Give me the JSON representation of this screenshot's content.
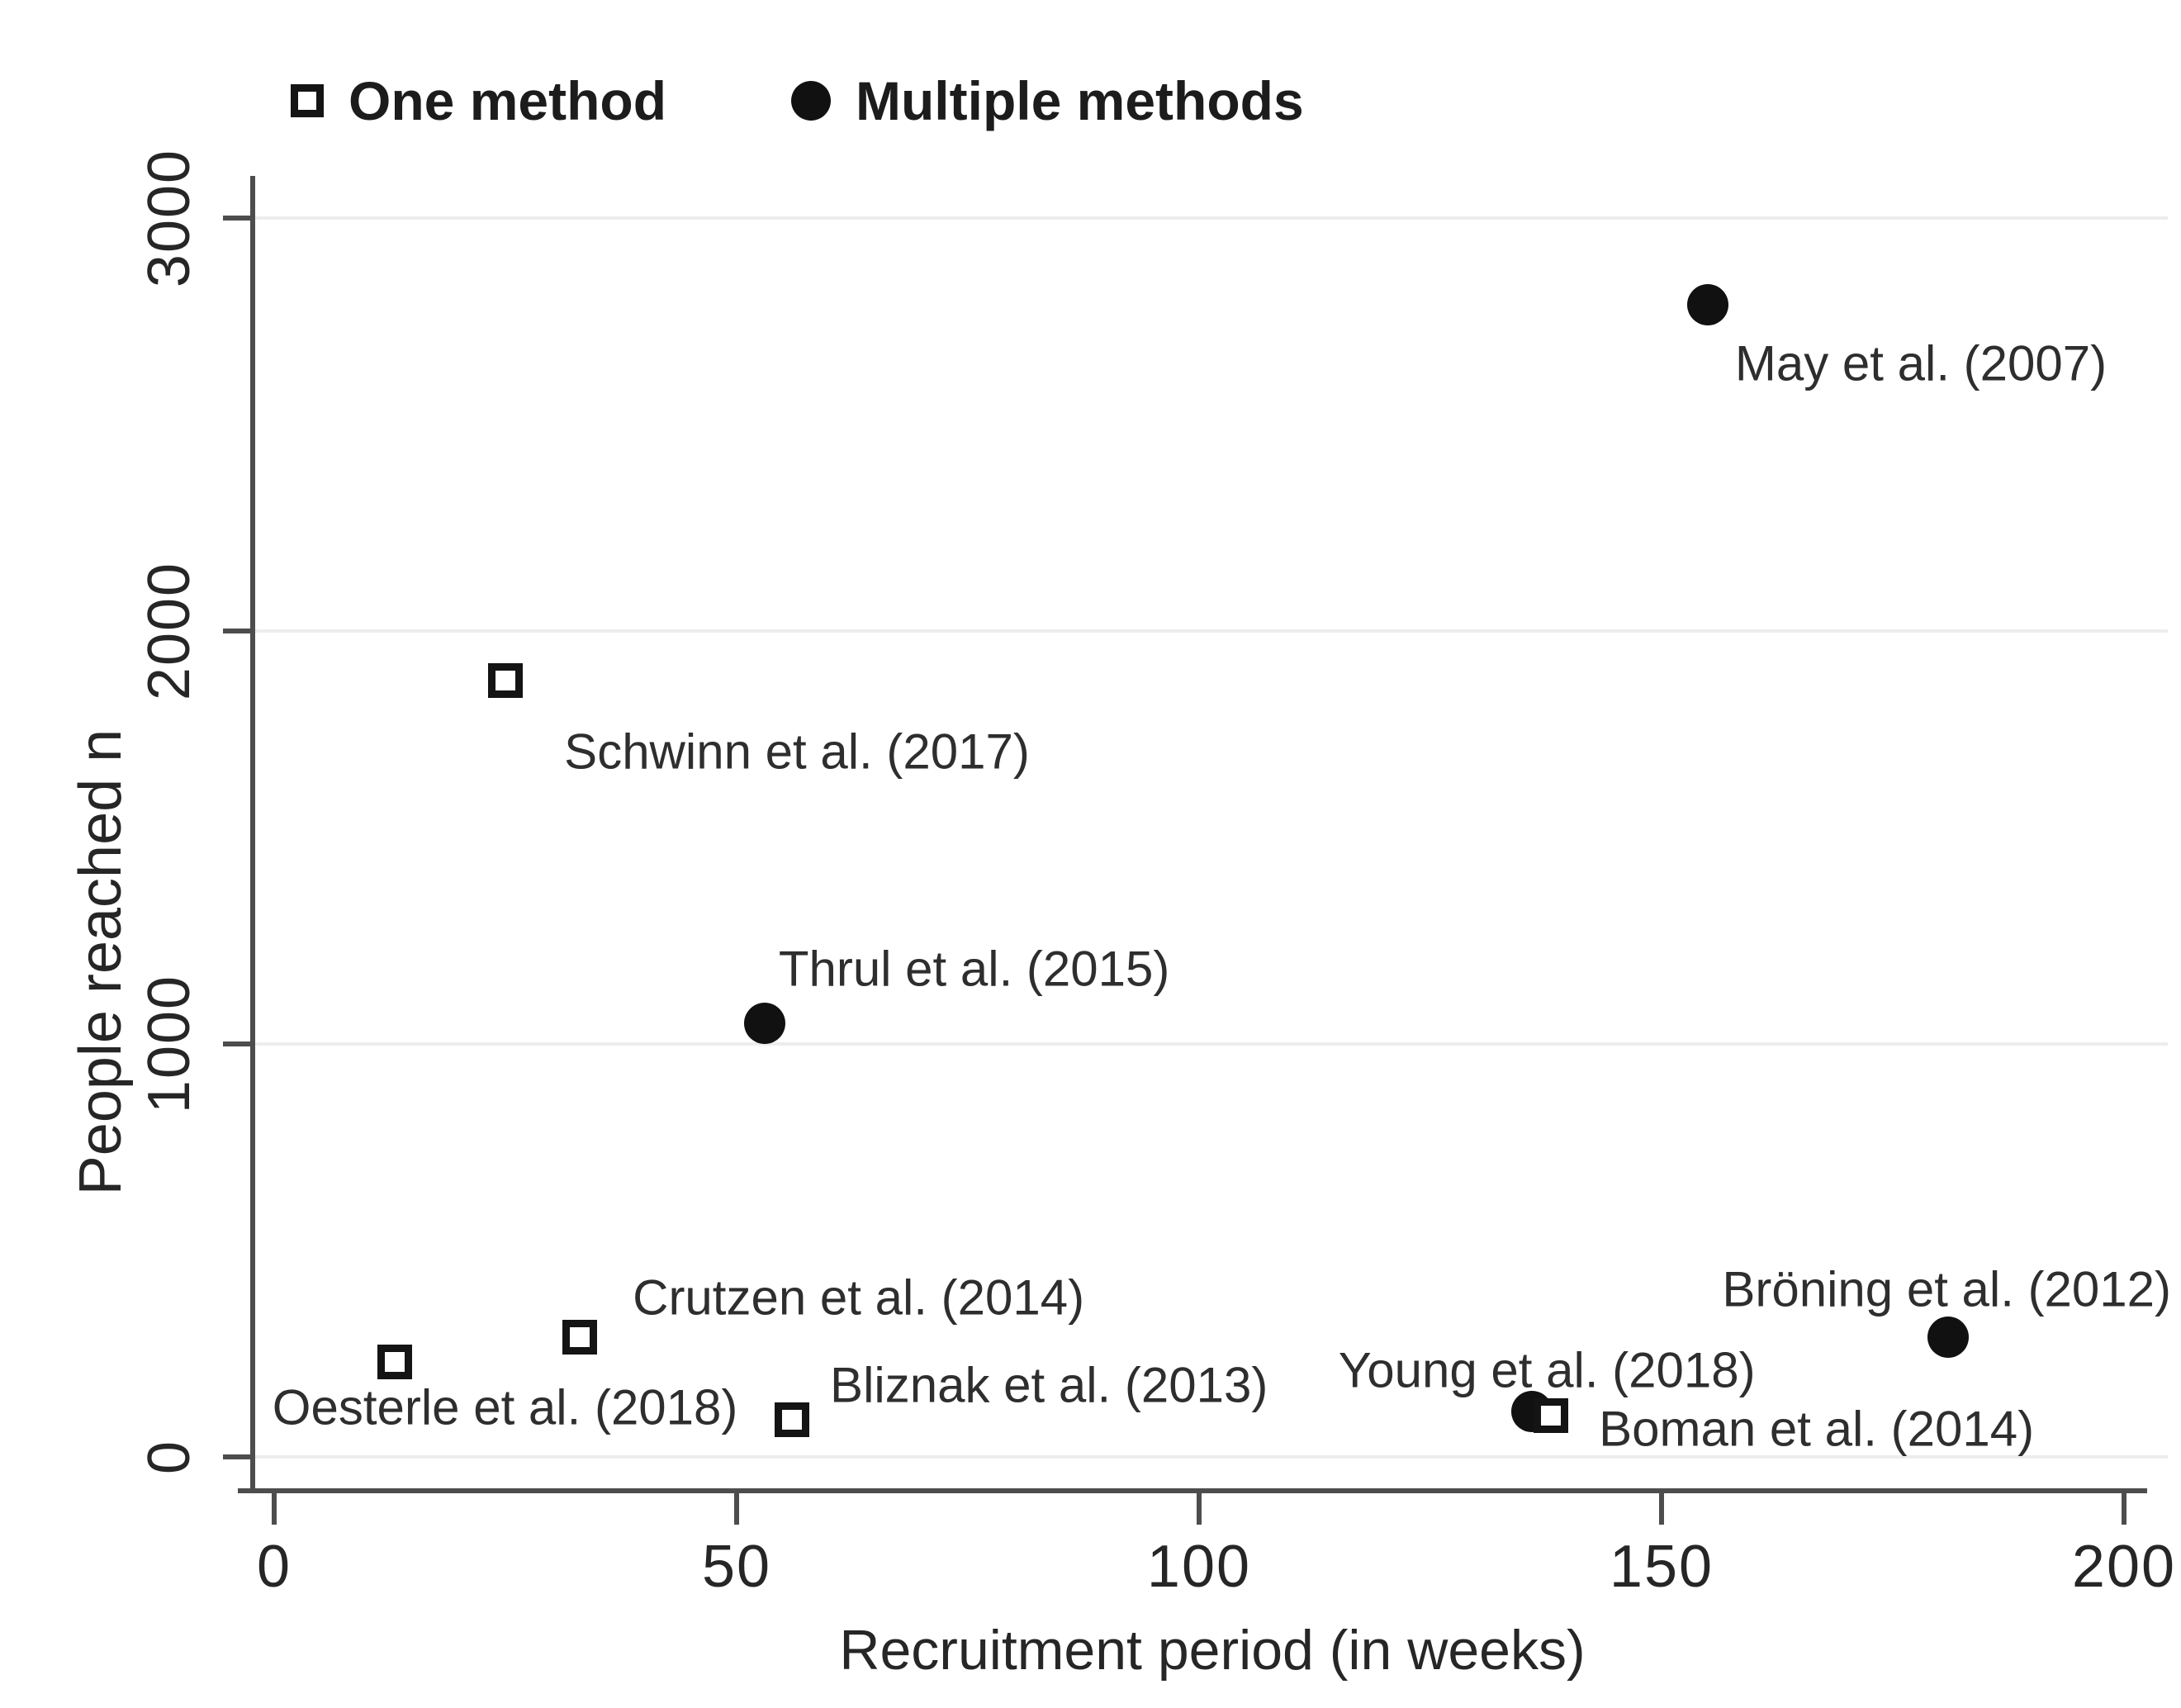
{
  "chart_data": {
    "type": "scatter",
    "title": "",
    "xlabel": "Recruitment period (in weeks)",
    "ylabel": "People reached n",
    "xlim": [
      0,
      200
    ],
    "ylim": [
      0,
      3000
    ],
    "x_ticks": [
      0,
      50,
      100,
      150,
      200
    ],
    "y_ticks": [
      0,
      1000,
      2000,
      3000
    ],
    "grid": "horizontal-light",
    "legend_position": "top-left",
    "axis_color": "#4d4d4d",
    "marker_color": "#111111",
    "series": [
      {
        "name": "One method",
        "marker": "hollow-square",
        "points": [
          {
            "label": "Schwinn et al. (2017)",
            "x": 25,
            "y": 1880,
            "label_dx": 353,
            "label_dy": 86
          },
          {
            "label": "Oesterle et al. (2018)",
            "x": 13,
            "y": 230,
            "label_dx": 134,
            "label_dy": 55
          },
          {
            "label": "Crutzen et al. (2014)",
            "x": 33,
            "y": 290,
            "label_dx": 338,
            "label_dy": -48
          },
          {
            "label": "Bliznak et al. (2013)",
            "x": 56,
            "y": 90,
            "label_dx": 311,
            "label_dy": -42
          },
          {
            "label": "Boman et al. (2014)",
            "x": 138,
            "y": 100,
            "label_dx": 322,
            "label_dy": 16
          }
        ]
      },
      {
        "name": "Multiple methods",
        "marker": "filled-circle",
        "points": [
          {
            "label": "May et al. (2007)",
            "x": 155,
            "y": 2790,
            "label_dx": 258,
            "label_dy": 71
          },
          {
            "label": "Thrul et al. (2015)",
            "x": 53,
            "y": 1050,
            "label_dx": 254,
            "label_dy": -66
          },
          {
            "label": "Young et al. (2018)",
            "x": 136,
            "y": 110,
            "label_dx": 18,
            "label_dy": -50
          },
          {
            "label": "Bröning et al. (2012)",
            "x": 181,
            "y": 290,
            "label_dx": -2,
            "label_dy": -58
          }
        ]
      }
    ]
  }
}
